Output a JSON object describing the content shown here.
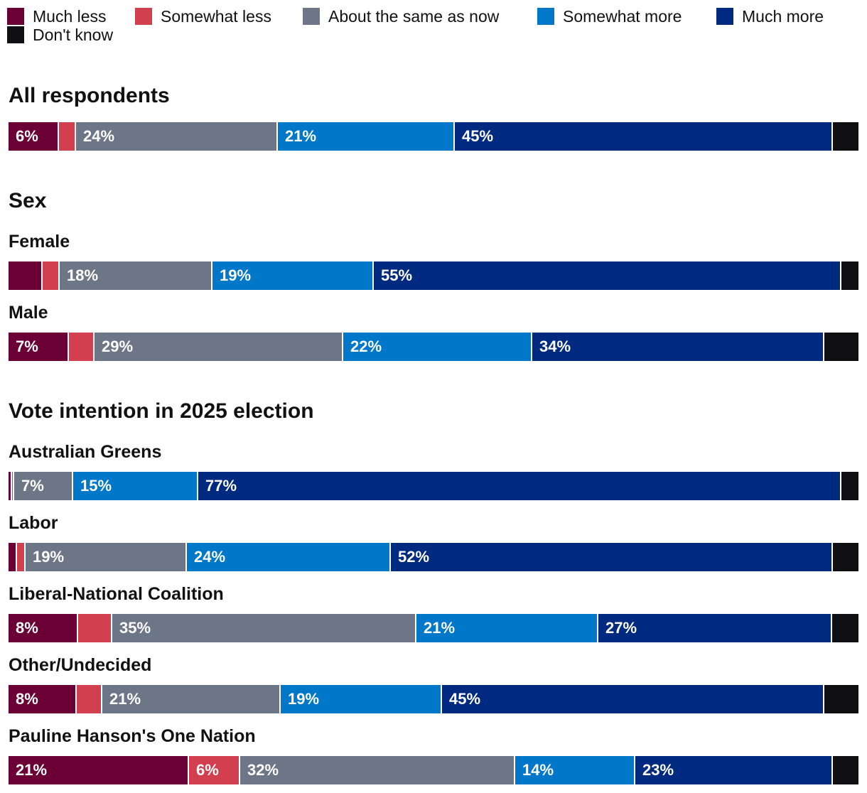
{
  "chart_data": {
    "type": "bar",
    "orientation": "horizontal",
    "stacked": true,
    "normalized": true,
    "legend": [
      {
        "key": "much_less",
        "label": "Much less",
        "color": "#6a0036"
      },
      {
        "key": "somewhat_less",
        "label": "Somewhat less",
        "color": "#d2404f"
      },
      {
        "key": "same",
        "label": "About the same as now",
        "color": "#6d7687"
      },
      {
        "key": "somewhat_more",
        "label": "Somewhat more",
        "color": "#0077c8"
      },
      {
        "key": "much_more",
        "label": "Much more",
        "color": "#002a7f"
      },
      {
        "key": "dont_know",
        "label": "Don't know",
        "color": "#0f0f14"
      }
    ],
    "sections": [
      {
        "title": "All respondents",
        "rows": [
          {
            "label": "",
            "values": [
              6,
              2,
              24,
              21,
              45,
              3
            ],
            "labels": [
              "6%",
              "",
              "24%",
              "21%",
              "45%",
              ""
            ]
          }
        ]
      },
      {
        "title": "Sex",
        "rows": [
          {
            "label": "Female",
            "values": [
              4,
              2,
              18,
              19,
              55,
              2
            ],
            "labels": [
              "",
              "",
              "18%",
              "19%",
              "55%",
              ""
            ]
          },
          {
            "label": "Male",
            "values": [
              7,
              3,
              29,
              22,
              34,
              4
            ],
            "labels": [
              "7%",
              "",
              "29%",
              "22%",
              "34%",
              ""
            ]
          }
        ]
      },
      {
        "title": "Vote intention in 2025 election",
        "rows": [
          {
            "label": "Australian Greens",
            "values": [
              0.4,
              0.3,
              7,
              15,
              77,
              2
            ],
            "labels": [
              "",
              "",
              "7%",
              "15%",
              "77%",
              ""
            ]
          },
          {
            "label": "Labor",
            "values": [
              1,
              1,
              19,
              24,
              52,
              3
            ],
            "labels": [
              "",
              "",
              "19%",
              "24%",
              "52%",
              ""
            ]
          },
          {
            "label": "Liberal-National Coalition",
            "values": [
              8,
              4,
              35,
              21,
              27,
              3
            ],
            "labels": [
              "8%",
              "",
              "35%",
              "21%",
              "27%",
              ""
            ]
          },
          {
            "label": "Other/Undecided",
            "values": [
              8,
              3,
              21,
              19,
              45,
              4
            ],
            "labels": [
              "8%",
              "",
              "21%",
              "19%",
              "45%",
              ""
            ]
          },
          {
            "label": "Pauline Hanson's One Nation",
            "values": [
              21,
              6,
              32,
              14,
              23,
              3
            ],
            "labels": [
              "21%",
              "6%",
              "32%",
              "14%",
              "23%",
              ""
            ]
          }
        ]
      }
    ]
  }
}
